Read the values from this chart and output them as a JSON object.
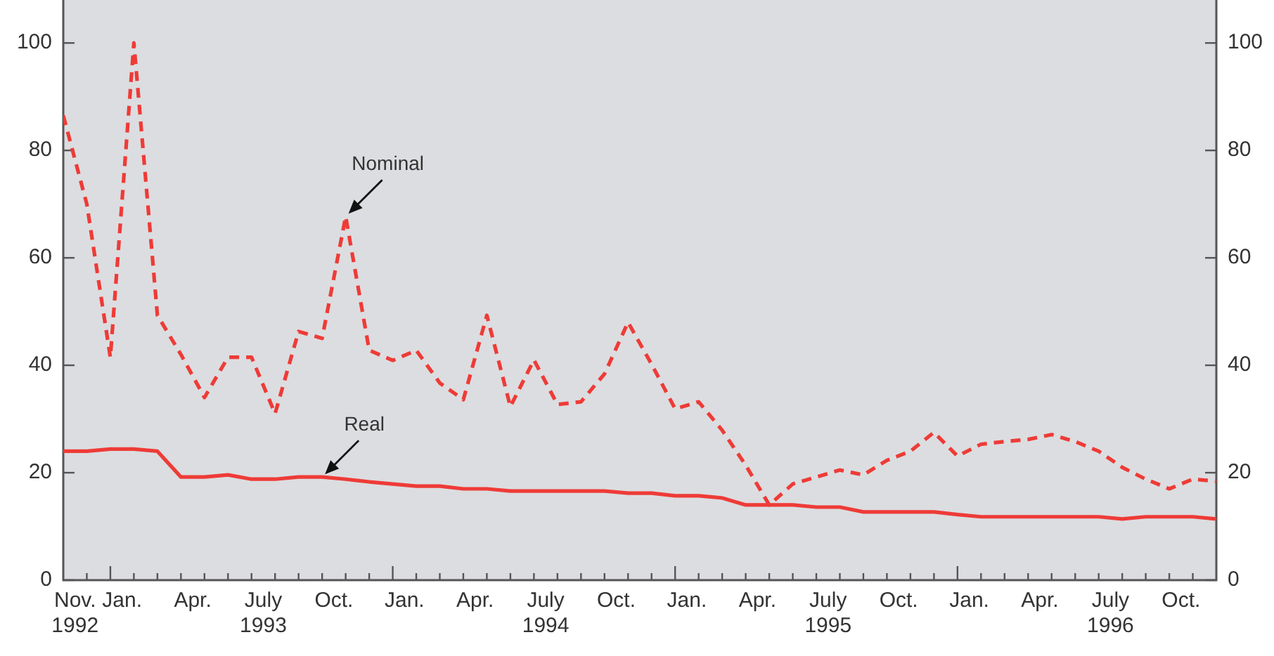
{
  "chart_data": {
    "type": "line",
    "x": [
      "1992-11",
      "1992-12",
      "1993-01",
      "1993-02",
      "1993-03",
      "1993-04",
      "1993-05",
      "1993-06",
      "1993-07",
      "1993-08",
      "1993-09",
      "1993-10",
      "1993-11",
      "1993-12",
      "1994-01",
      "1994-02",
      "1994-03",
      "1994-04",
      "1994-05",
      "1994-06",
      "1994-07",
      "1994-08",
      "1994-09",
      "1994-10",
      "1994-11",
      "1994-12",
      "1995-01",
      "1995-02",
      "1995-03",
      "1995-04",
      "1995-05",
      "1995-06",
      "1995-07",
      "1995-08",
      "1995-09",
      "1995-10",
      "1995-11",
      "1995-12",
      "1996-01",
      "1996-02",
      "1996-03",
      "1996-04",
      "1996-05",
      "1996-06",
      "1996-07",
      "1996-08",
      "1996-09",
      "1996-10",
      "1996-11",
      "1996-12"
    ],
    "series": [
      {
        "color": "#ee3b37",
        "line_style": "dashed",
        "values": [
          86.5,
          70,
          41.5,
          100,
          49.3,
          42,
          34,
          41.5,
          41.5,
          31,
          46.3,
          45,
          67.7,
          42.8,
          40.9,
          42.8,
          36.7,
          33.6,
          49.3,
          32.3,
          41,
          32.7,
          33.2,
          38.4,
          48,
          40.2,
          31.9,
          33.2,
          27.9,
          21.4,
          14,
          17.9,
          19.2,
          20.5,
          19.6,
          22.3,
          24,
          27.5,
          23.1,
          25.3,
          25.8,
          26.2,
          27.1,
          25.8,
          24,
          21,
          18.8,
          17,
          18.8,
          18.4
        ]
      },
      {
        "color": "#ee3b37",
        "line_style": "solid",
        "values": [
          24,
          24,
          24.4,
          24.4,
          24,
          19.2,
          19.2,
          19.6,
          18.8,
          18.8,
          19.2,
          19.2,
          18.8,
          18.3,
          17.9,
          17.5,
          17.5,
          17,
          17,
          16.6,
          16.6,
          16.6,
          16.6,
          16.6,
          16.2,
          16.2,
          15.7,
          15.7,
          15.3,
          14,
          14,
          14,
          13.6,
          13.6,
          12.7,
          12.7,
          12.7,
          12.7,
          12.2,
          11.8,
          11.8,
          11.8,
          11.8,
          11.8,
          11.8,
          11.4,
          11.8,
          11.8,
          11.8,
          11.4
        ]
      }
    ],
    "xlim": [
      "1992-11",
      "1996-12"
    ],
    "xticks": [
      {
        "value": "1992-11-16",
        "label": "Nov.\n1992"
      },
      {
        "value": "1993-01-16",
        "label": "Jan."
      },
      {
        "value": "1993-04-16",
        "label": "Apr."
      },
      {
        "value": "1993-07-16",
        "label": "July\n1993"
      },
      {
        "value": "1993-10-16",
        "label": "Oct."
      },
      {
        "value": "1994-01-16",
        "label": "Jan."
      },
      {
        "value": "1994-04-16",
        "label": "Apr."
      },
      {
        "value": "1994-07-16",
        "label": "July\n1994"
      },
      {
        "value": "1994-10-16",
        "label": "Oct."
      },
      {
        "value": "1995-01-16",
        "label": "Jan."
      },
      {
        "value": "1995-04-16",
        "label": "Apr."
      },
      {
        "value": "1995-07-16",
        "label": "July\n1995"
      },
      {
        "value": "1995-10-16",
        "label": "Oct."
      },
      {
        "value": "1996-01-16",
        "label": "Jan."
      },
      {
        "value": "1996-04-16",
        "label": "Apr."
      },
      {
        "value": "1996-07-16",
        "label": "July\n1996"
      },
      {
        "value": "1996-10-16",
        "label": "Oct."
      },
      {
        "value": "1992-12",
        "label": null
      },
      {
        "value": "1993-01",
        "label": null
      },
      {
        "value": "1993-02",
        "label": null
      },
      {
        "value": "1993-03",
        "label": null
      },
      {
        "value": "1993-04",
        "label": null
      },
      {
        "value": "1993-05",
        "label": null
      },
      {
        "value": "1993-06",
        "label": null
      },
      {
        "value": "1993-07",
        "label": null
      },
      {
        "value": "1993-08",
        "label": null
      },
      {
        "value": "1993-09",
        "label": null
      },
      {
        "value": "1993-10",
        "label": null
      },
      {
        "value": "1993-11",
        "label": null
      },
      {
        "value": "1993-12",
        "label": null
      },
      {
        "value": "1994-01",
        "label": null
      },
      {
        "value": "1994-02",
        "label": null
      },
      {
        "value": "1994-03",
        "label": null
      },
      {
        "value": "1994-04",
        "label": null
      },
      {
        "value": "1994-05",
        "label": null
      },
      {
        "value": "1994-06",
        "label": null
      },
      {
        "value": "1994-07",
        "label": null
      },
      {
        "value": "1994-08",
        "label": null
      },
      {
        "value": "1994-09",
        "label": null
      },
      {
        "value": "1994-10",
        "label": null
      },
      {
        "value": "1994-11",
        "label": null
      },
      {
        "value": "1994-12",
        "label": null
      },
      {
        "value": "1995-01",
        "label": null
      },
      {
        "value": "1995-02",
        "label": null
      },
      {
        "value": "1995-03",
        "label": null
      },
      {
        "value": "1995-04",
        "label": null
      },
      {
        "value": "1995-05",
        "label": null
      },
      {
        "value": "1995-06",
        "label": null
      },
      {
        "value": "1995-07",
        "label": null
      },
      {
        "value": "1995-08",
        "label": null
      },
      {
        "value": "1995-09",
        "label": null
      },
      {
        "value": "1995-10",
        "label": null
      },
      {
        "value": "1995-11",
        "label": null
      },
      {
        "value": "1995-12",
        "label": null
      },
      {
        "value": "1996-01",
        "label": null
      },
      {
        "value": "1996-02",
        "label": null
      },
      {
        "value": "1996-03",
        "label": null
      },
      {
        "value": "1996-04",
        "label": null
      },
      {
        "value": "1996-05",
        "label": null
      },
      {
        "value": "1996-06",
        "label": null
      },
      {
        "value": "1996-07",
        "label": null
      },
      {
        "value": "1996-08",
        "label": null
      },
      {
        "value": "1996-09",
        "label": null
      },
      {
        "value": "1996-10",
        "label": null
      },
      {
        "value": "1996-11",
        "label": null
      }
    ],
    "ylim": [
      0,
      108
    ],
    "yticks": [
      0,
      20,
      40,
      60,
      80,
      100
    ],
    "y2lim": [
      0,
      108
    ],
    "y2ticks": [
      0,
      20,
      40,
      60,
      80,
      100
    ],
    "annotations": [
      {
        "text": "Nominal",
        "x": "1993-11",
        "y": 67.7
      },
      {
        "text": "Real",
        "x": "1993-10",
        "y": 19.2
      }
    ],
    "grid": false,
    "legend": false,
    "marker": "none"
  }
}
